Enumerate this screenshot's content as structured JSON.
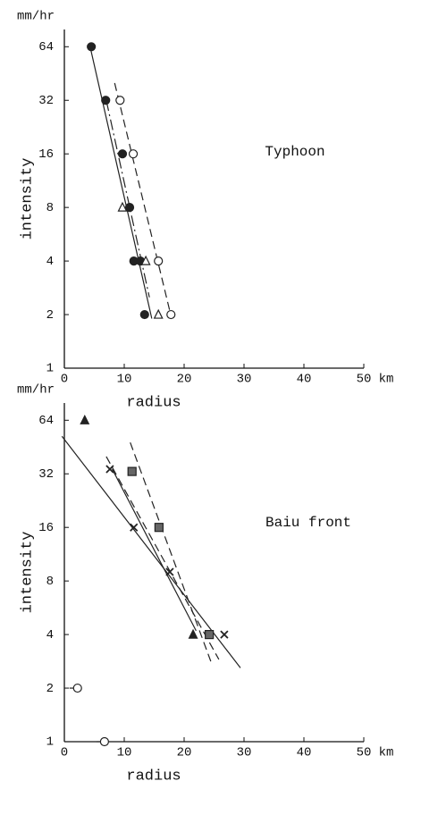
{
  "chart_data": [
    {
      "type": "scatter",
      "title": "Typhoon",
      "x_label": "radius",
      "y_label": "intensity",
      "x_unit": "km",
      "y_unit": "mm/hr",
      "log_y": true,
      "xlim": [
        0,
        50
      ],
      "ylim": [
        1,
        80
      ],
      "xticks": [
        0,
        10,
        20,
        30,
        40,
        50
      ],
      "yticks": [
        1,
        2,
        4,
        8,
        16,
        32,
        64
      ],
      "series": [
        {
          "marker": "filled-circle",
          "color": "#222",
          "x": [
            4.5,
            6.9,
            9.7,
            10.9,
            11.6,
            12.7,
            13.4
          ],
          "values": [
            64,
            32,
            16,
            8,
            4,
            4,
            2
          ]
        },
        {
          "marker": "open-circle",
          "color": "#222",
          "x": [
            9.3,
            11.5,
            15.7,
            17.8
          ],
          "values": [
            32,
            16,
            4,
            2
          ]
        },
        {
          "marker": "open-triangle",
          "color": "#222",
          "x": [
            9.7,
            13.6,
            15.7
          ],
          "values": [
            8,
            4,
            2
          ]
        }
      ],
      "fit_lines": [
        {
          "style": "solid",
          "x": [
            4.3,
            14.6
          ],
          "values": [
            64,
            1.9
          ]
        },
        {
          "style": "dashed",
          "x": [
            8.4,
            17.6
          ],
          "values": [
            40,
            2.1
          ]
        },
        {
          "style": "dashdot",
          "x": [
            7.0,
            14.2
          ],
          "values": [
            32,
            2.5
          ]
        }
      ]
    },
    {
      "type": "scatter",
      "title": "Baiu front",
      "x_label": "radius",
      "y_label": "intensity",
      "x_unit": "km",
      "y_unit": "mm/hr",
      "log_y": true,
      "xlim": [
        0,
        50
      ],
      "ylim": [
        1,
        80
      ],
      "xticks": [
        0,
        10,
        20,
        30,
        40,
        50
      ],
      "yticks": [
        1,
        2,
        4,
        8,
        16,
        32,
        64
      ],
      "series": [
        {
          "marker": "filled-triangle",
          "color": "#222",
          "x": [
            3.4,
            21.5
          ],
          "values": [
            64,
            4
          ]
        },
        {
          "marker": "cross",
          "color": "#222",
          "x": [
            7.6,
            11.6,
            17.6,
            26.7
          ],
          "values": [
            34,
            16,
            9,
            4
          ]
        },
        {
          "marker": "filled-square",
          "color": "#222",
          "x": [
            11.3,
            15.8,
            24.2
          ],
          "values": [
            33,
            16,
            4
          ]
        },
        {
          "marker": "barred-circle",
          "color": "#222",
          "x": [
            2.2,
            6.7
          ],
          "values": [
            2,
            1
          ]
        }
      ],
      "fit_lines": [
        {
          "style": "solid",
          "x": [
            -0.4,
            29.4
          ],
          "values": [
            52,
            2.6
          ]
        },
        {
          "style": "solid",
          "x": [
            8.0,
            22.0
          ],
          "values": [
            34,
            4.2
          ]
        },
        {
          "style": "dashed",
          "x": [
            7.0,
            25.8
          ],
          "values": [
            40,
            2.9
          ]
        },
        {
          "style": "dashed",
          "x": [
            11.0,
            24.5
          ],
          "values": [
            48,
            2.8
          ]
        }
      ]
    }
  ]
}
